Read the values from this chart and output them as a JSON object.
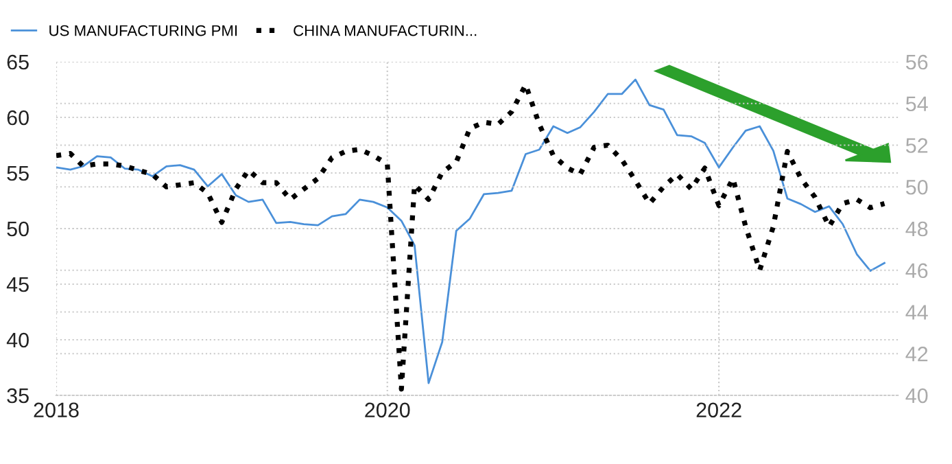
{
  "chart_data": {
    "type": "line",
    "x": [
      "2018-01",
      "2018-02",
      "2018-03",
      "2018-04",
      "2018-05",
      "2018-06",
      "2018-07",
      "2018-08",
      "2018-09",
      "2018-10",
      "2018-11",
      "2018-12",
      "2019-01",
      "2019-02",
      "2019-03",
      "2019-04",
      "2019-05",
      "2019-06",
      "2019-07",
      "2019-08",
      "2019-09",
      "2019-10",
      "2019-11",
      "2019-12",
      "2020-01",
      "2020-02",
      "2020-03",
      "2020-04",
      "2020-05",
      "2020-06",
      "2020-07",
      "2020-08",
      "2020-09",
      "2020-10",
      "2020-11",
      "2020-12",
      "2021-01",
      "2021-02",
      "2021-03",
      "2021-04",
      "2021-05",
      "2021-06",
      "2021-07",
      "2021-08",
      "2021-09",
      "2021-10",
      "2021-11",
      "2021-12",
      "2022-01",
      "2022-02",
      "2022-03",
      "2022-04",
      "2022-05",
      "2022-06",
      "2022-07",
      "2022-08",
      "2022-09",
      "2022-10",
      "2022-11",
      "2022-12",
      "2023-01"
    ],
    "series": [
      {
        "name": "US MANUFACTURING PMI",
        "color": "#4a90d9",
        "line_style": "solid",
        "values": [
          55.5,
          55.3,
          55.6,
          56.5,
          56.4,
          55.4,
          55.3,
          54.7,
          55.6,
          55.7,
          55.3,
          53.8,
          54.9,
          53.0,
          52.4,
          52.6,
          50.5,
          50.6,
          50.4,
          50.3,
          51.1,
          51.3,
          52.6,
          52.4,
          51.9,
          50.7,
          48.5,
          36.1,
          39.8,
          49.8,
          50.9,
          53.1,
          53.2,
          53.4,
          56.7,
          57.1,
          59.2,
          58.6,
          59.1,
          60.5,
          62.1,
          62.1,
          63.4,
          61.1,
          60.7,
          58.4,
          58.3,
          57.7,
          55.5,
          57.3,
          58.8,
          59.2,
          57.0,
          52.7,
          52.2,
          51.5,
          52.0,
          50.4,
          47.7,
          46.2,
          46.9
        ]
      },
      {
        "name": "CHINA MANUFACTURIN...",
        "color": "#000000",
        "line_style": "dotted",
        "axis": "y2",
        "values": [
          51.5,
          51.6,
          51.0,
          51.1,
          51.1,
          51.0,
          50.8,
          50.6,
          50.0,
          50.1,
          50.2,
          49.7,
          48.3,
          49.9,
          50.8,
          50.2,
          50.2,
          49.4,
          49.9,
          50.4,
          51.4,
          51.7,
          51.8,
          51.5,
          51.1,
          40.3,
          50.1,
          49.4,
          50.7,
          51.2,
          52.8,
          53.1,
          53.0,
          53.6,
          54.9,
          53.0,
          51.5,
          50.9,
          50.6,
          51.9,
          52.0,
          51.3,
          50.3,
          49.2,
          50.0,
          50.6,
          49.9,
          50.9,
          49.1,
          50.4,
          48.1,
          46.0,
          48.1,
          51.7,
          50.4,
          49.5,
          48.1,
          49.2,
          49.4,
          49.0,
          49.2
        ]
      }
    ],
    "xlim": [
      "2018-01",
      "2023-02"
    ],
    "xticks": [
      {
        "value": "2018-01",
        "label": "2018"
      },
      {
        "value": "2020-01",
        "label": "2020"
      },
      {
        "value": "2022-01",
        "label": "2022"
      }
    ],
    "ylim": [
      35,
      65
    ],
    "yticks": [
      35,
      40,
      45,
      50,
      55,
      60,
      65
    ],
    "y2lim": [
      40,
      56
    ],
    "y2ticks": [
      40,
      42,
      44,
      46,
      48,
      50,
      52,
      54,
      56
    ],
    "grid": true,
    "legend": "top left"
  }
}
